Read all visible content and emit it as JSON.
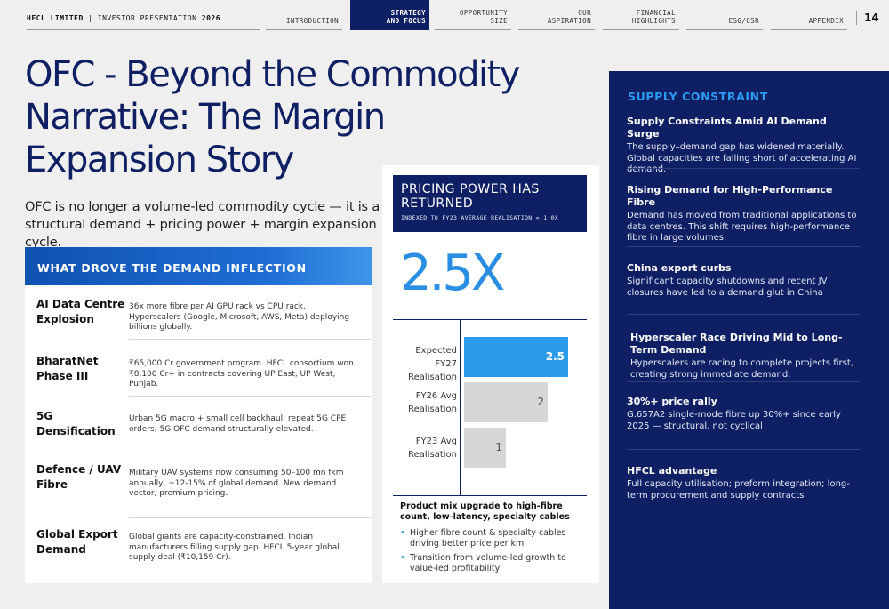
{
  "header": {
    "company": "HFCL LIMITED",
    "separator": "|",
    "presentation": "INVESTOR PRESENTATION",
    "year": "2026",
    "page_number": "14"
  },
  "nav": {
    "tabs": [
      {
        "label": "INTRODUCTION",
        "active": false
      },
      {
        "label": "STRATEGY\nAND FOCUS",
        "active": true
      },
      {
        "label": "OPPORTUNITY\nSIZE",
        "active": false
      },
      {
        "label": "OUR\nASPIRATION",
        "active": false
      },
      {
        "label": "FINANCIAL\nHIGHLIGHTS",
        "active": false
      },
      {
        "label": "ESG/CSR",
        "active": false
      },
      {
        "label": "APPENDIX",
        "active": false
      }
    ]
  },
  "main": {
    "title": "OFC - Beyond the Commodity Narrative: The Margin Expansion Story",
    "intro": "OFC is no longer a volume-led commodity cycle — it is a structural demand + pricing power + margin expansion cycle."
  },
  "drivers": {
    "heading": "WHAT DROVE THE DEMAND INFLECTION",
    "items": [
      {
        "name": "AI Data Centre Explosion",
        "desc": "36x more fibre per AI GPU rack vs CPU rack. Hyperscalers (Google, Microsoft, AWS, Meta) deploying billions globally."
      },
      {
        "name": "BharatNet Phase III",
        "desc": "₹65,000 Cr government program. HFCL consortium won ₹8,100 Cr+ in contracts covering UP East, UP West, Punjab."
      },
      {
        "name": "5G Densification",
        "desc": "Urban 5G macro + small cell backhaul; repeat 5G CPE orders; 5G OFC demand structurally elevated."
      },
      {
        "name": "Defence / UAV Fibre",
        "desc": "Military UAV systems now consuming 50–100 mn fkm annually, ~12-15% of global demand. New demand vector, premium pricing."
      },
      {
        "name": "Global Export Demand",
        "desc": "Global giants are capacity-constrained. Indian manufacturers filling supply gap. HFCL 5-year global supply deal (₹10,159 Cr)."
      }
    ]
  },
  "pricing": {
    "title": "PRICING POWER HAS RETURNED",
    "subtitle": "INDEXED TO FY23 AVERAGE REALISATION = 1.0X",
    "headline": "2.5X",
    "mix_heading": "Product mix upgrade to high-fibre count, low-latency, specialty cables",
    "mix_points": [
      "Higher fibre count & specialty cables driving better price per km",
      "Transition from volume-led growth to value-led profitability"
    ]
  },
  "chart_data": {
    "type": "bar",
    "orientation": "horizontal",
    "categories": [
      "Expected FY27 Realisation",
      "FY26 Avg Realisation",
      "FY23 Avg Realisation"
    ],
    "values": [
      2.5,
      2,
      1
    ],
    "value_labels": [
      "2.5",
      "2",
      "1"
    ],
    "highlight_color": "#2a9be8",
    "base_color": "#d6d6d6",
    "xlim": [
      0,
      2.8
    ],
    "grid": false
  },
  "supply": {
    "heading": "SUPPLY CONSTRAINT",
    "items": [
      {
        "title": "Supply Constraints Amid AI Demand Surge",
        "desc": "The supply–demand gap has widened materially. Global capacities are falling short of accelerating AI demand."
      },
      {
        "title": "Rising Demand for High-Performance Fibre",
        "desc": "Demand has moved from traditional applications to data centres. This shift requires high-performance fibre in large volumes."
      },
      {
        "title": "China export curbs",
        "desc": "Significant capacity shutdowns and recent JV closures have led to a demand glut in China"
      },
      {
        "title": "Hyperscaler Race Driving Mid to Long-Term Demand",
        "desc": "Hyperscalers are racing to complete projects first, creating strong immediate demand."
      },
      {
        "title": "30%+ price rally",
        "desc": "G.657A2 single-mode fibre up 30%+ since early 2025 — structural, not cyclical"
      },
      {
        "title": "HFCL advantage",
        "desc": "Full capacity utilisation; preform integration; long-term procurement and supply contracts"
      }
    ]
  }
}
